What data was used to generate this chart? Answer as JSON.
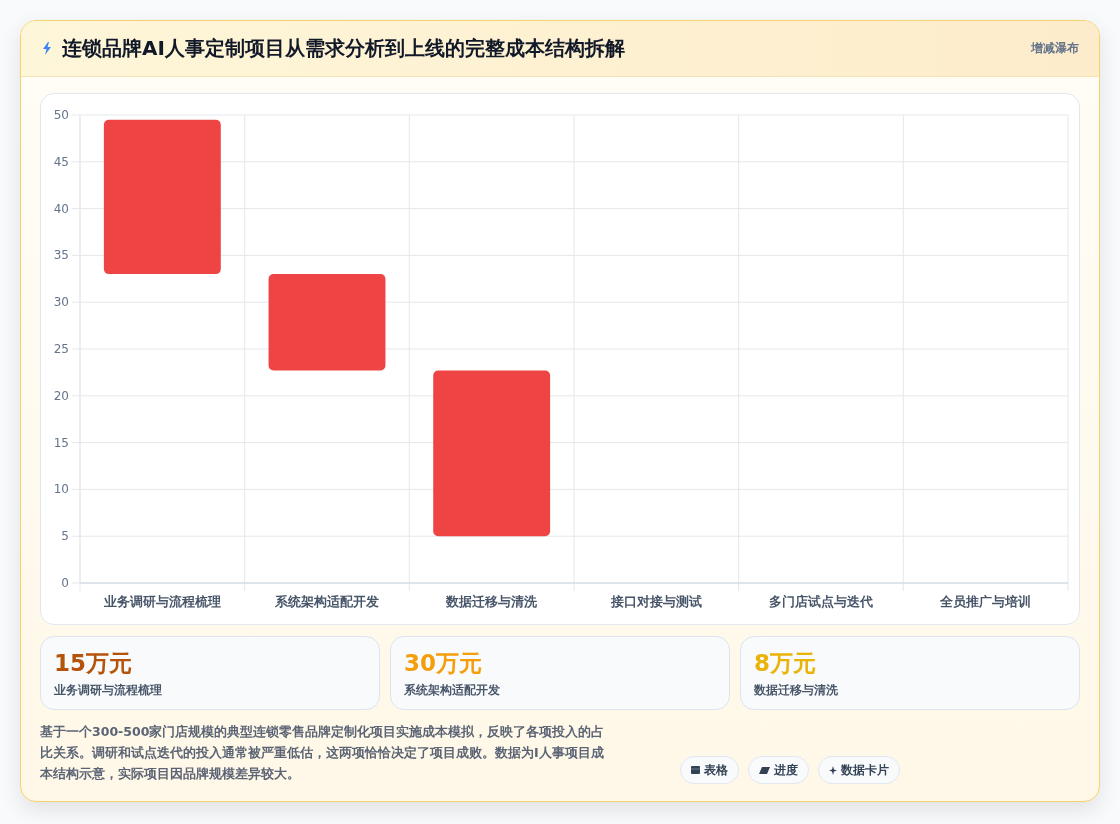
{
  "chart_data": [
    {
      "type": "bar",
      "title": "连锁品牌AI人事定制项目从需求分析到上线的完整成本结构拆解",
      "subtitle": "增减瀑布",
      "categories": [
        "业务调研与流程梳理",
        "系统架构适配开发",
        "数据迁移与清洗",
        "接口对接与测试",
        "多门店试点与迭代",
        "全员推广与培训"
      ],
      "base": [
        49.5,
        33,
        22.7,
        null,
        null,
        null
      ],
      "values": [
        -16.5,
        -10.3,
        -17.7,
        null,
        null,
        null
      ],
      "color": "#ef4444",
      "ylim": [
        0,
        50
      ],
      "yticks": [
        0,
        5,
        10,
        15,
        20,
        25,
        30,
        35,
        40,
        45,
        50
      ],
      "grid": true,
      "annotations": [
        "基于一个300-500家门店规模的典型连锁零售品牌定制化项目实施成本模拟，反映了各项投入的占比关系。调研和试点迭代的投入通常被严重低估，这两项恰恰决定了项目成败。数据为I人事项目成本结构示意，实际项目因品牌规模差异较大。",
        "表格",
        "进度",
        "数据卡片"
      ]
    },
    {
      "type": "other",
      "annotations": [
        "15万元",
        "业务调研与流程梳理",
        "30万元",
        "系统架构适配开发",
        "8万元",
        "数据迁移与清洗"
      ],
      "colors": [
        "#b45309",
        "#f59e0b",
        "#eab308"
      ]
    }
  ]
}
